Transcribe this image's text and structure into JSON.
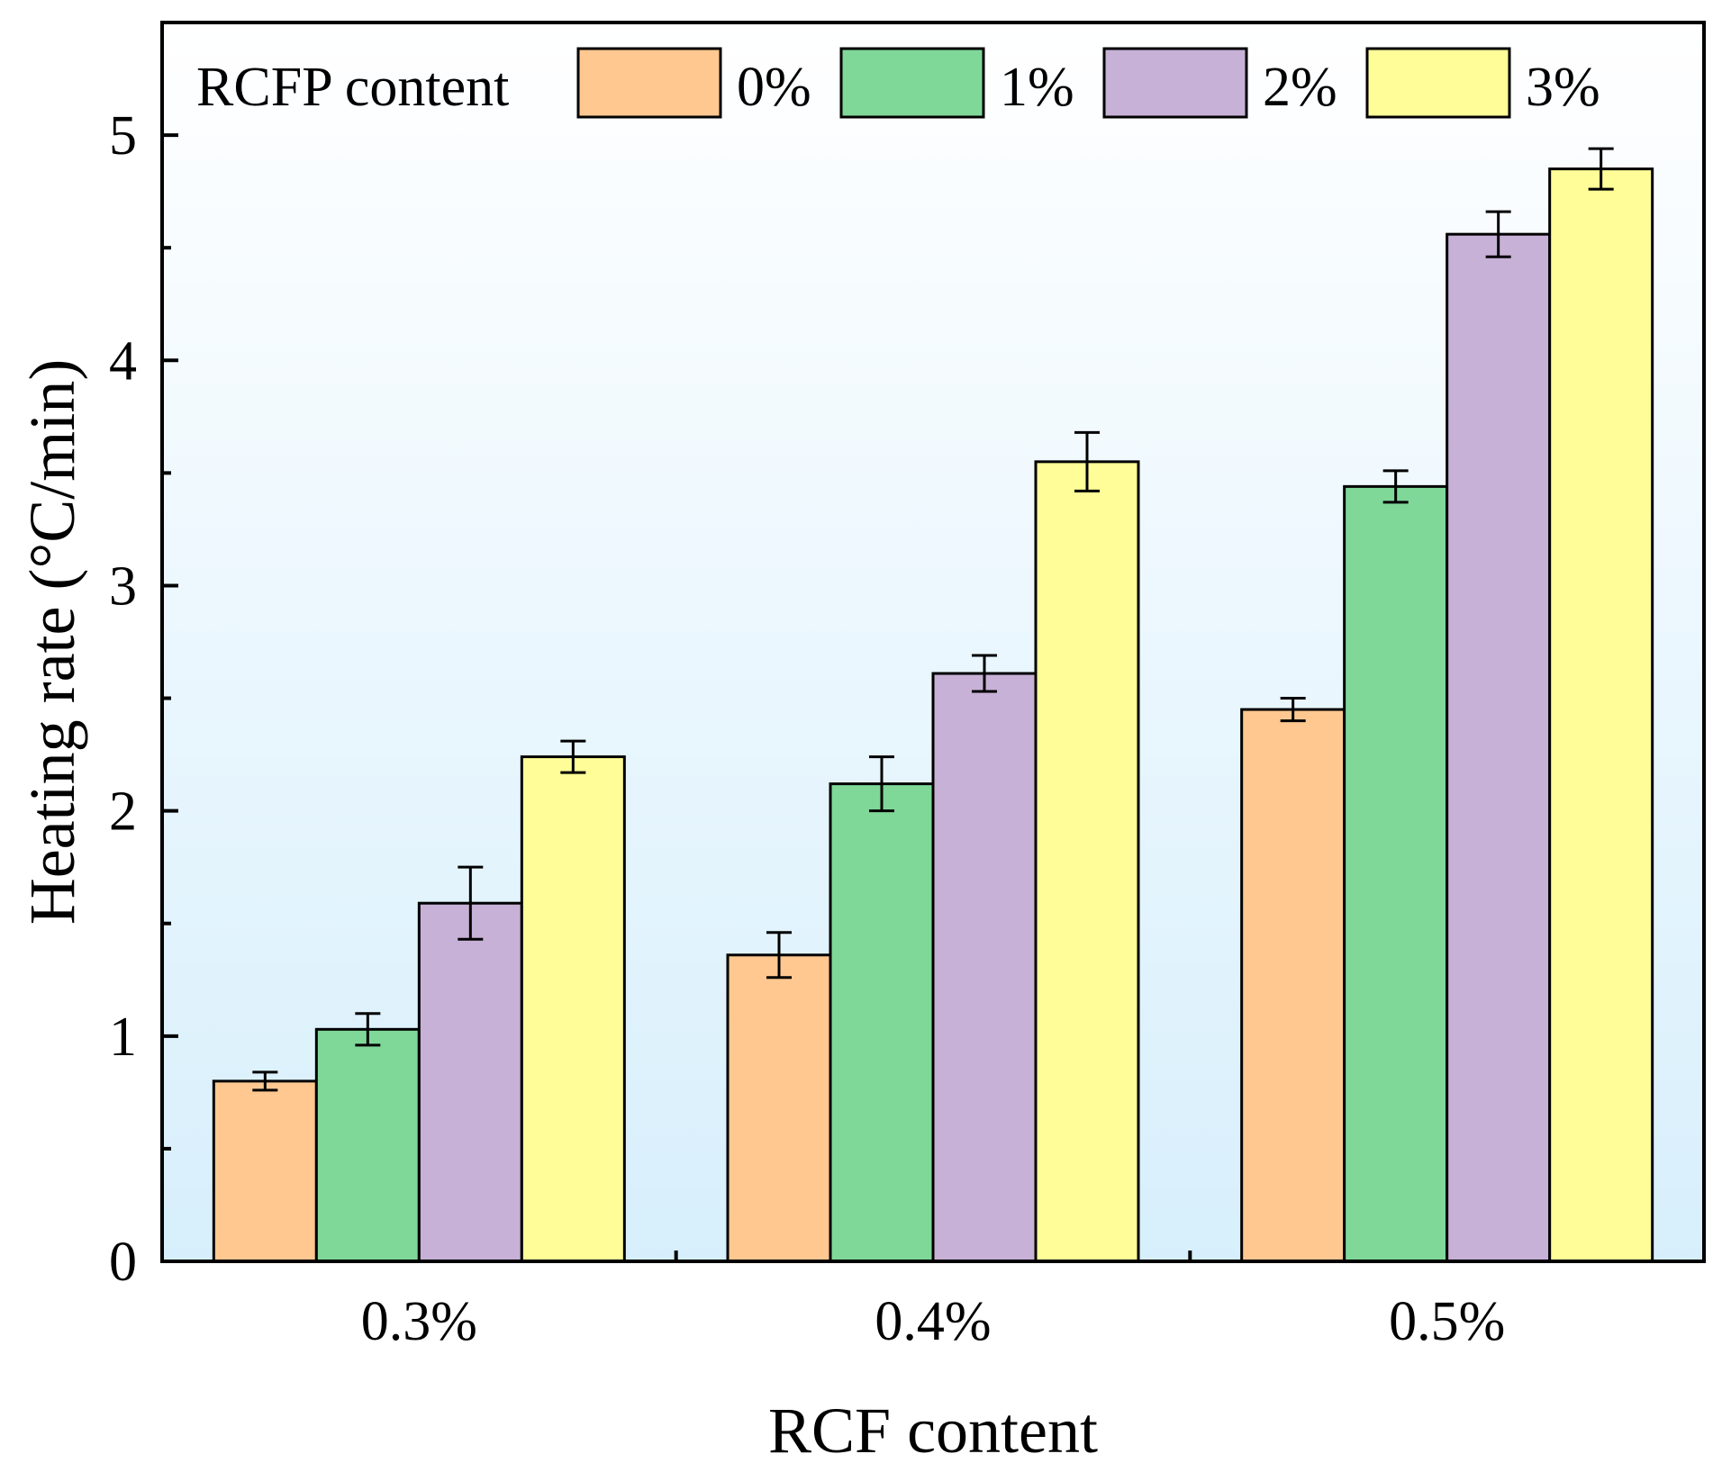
{
  "chart_data": {
    "type": "bar",
    "title": "",
    "xlabel": "RCF content",
    "ylabel": "Heating rate (°C/min)",
    "categories": [
      "0.3%",
      "0.4%",
      "0.5%"
    ],
    "ylim": [
      0,
      5.5
    ],
    "yticks": [
      0,
      1,
      2,
      3,
      4,
      5
    ],
    "yticks_minor": [
      0.5,
      1.5,
      2.5,
      3.5,
      4.5
    ],
    "grid": false,
    "legend": {
      "title": "RCFP content",
      "placement": "top",
      "entries": [
        "0%",
        "1%",
        "2%",
        "3%"
      ]
    },
    "series": [
      {
        "name": "0%",
        "color": "#FFC891",
        "values": [
          0.8,
          1.36,
          2.45
        ],
        "errors": [
          0.04,
          0.1,
          0.05
        ]
      },
      {
        "name": "1%",
        "color": "#7FD898",
        "values": [
          1.03,
          2.12,
          3.44
        ],
        "errors": [
          0.07,
          0.12,
          0.07
        ]
      },
      {
        "name": "2%",
        "color": "#C7B1D6",
        "values": [
          1.59,
          2.61,
          4.56
        ],
        "errors": [
          0.16,
          0.08,
          0.1
        ]
      },
      {
        "name": "3%",
        "color": "#FFFD97",
        "values": [
          2.24,
          3.55,
          4.85
        ],
        "errors": [
          0.07,
          0.13,
          0.09
        ]
      }
    ]
  }
}
